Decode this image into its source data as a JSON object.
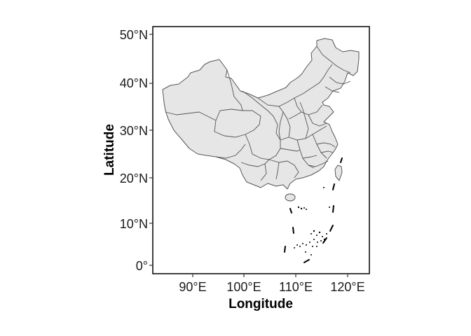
{
  "plot": {
    "xlabel": "Longitude",
    "ylabel": "Latitude",
    "x_ticks": [
      {
        "value": 90,
        "label": "90°E"
      },
      {
        "value": 100,
        "label": "100°E"
      },
      {
        "value": 110,
        "label": "110°E"
      },
      {
        "value": 120,
        "label": "120°E"
      }
    ],
    "y_ticks": [
      {
        "value": 0,
        "label": "0°"
      },
      {
        "value": 10,
        "label": "10°N"
      },
      {
        "value": 20,
        "label": "20°N"
      },
      {
        "value": 30,
        "label": "30°N"
      },
      {
        "value": 40,
        "label": "40°N"
      },
      {
        "value": 50,
        "label": "50°N"
      }
    ],
    "xlim": [
      82,
      125
    ],
    "ylim": [
      -2,
      52
    ],
    "land_fill": "#e6e6e6",
    "border_color": "#555555",
    "nine_dash_color": "#000000",
    "background": "#ffffff"
  }
}
